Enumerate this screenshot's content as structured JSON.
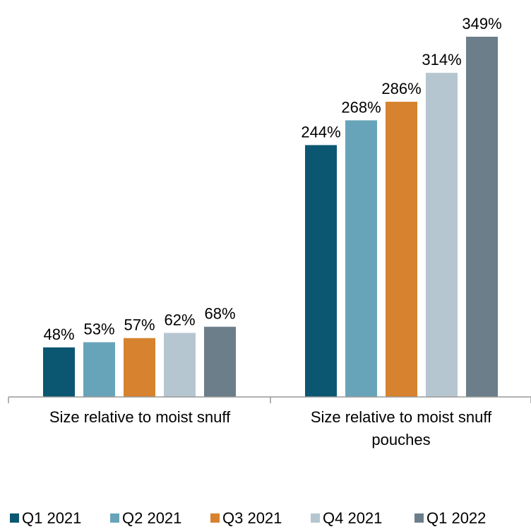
{
  "chart_data": {
    "type": "bar",
    "title": "",
    "xlabel": "",
    "ylabel": "",
    "categories": [
      [
        "Size relative to moist snuff"
      ],
      [
        "Size relative to moist snuff",
        "pouches"
      ]
    ],
    "series": [
      {
        "name": "Q1 2021",
        "color": "#0b5772",
        "values": [
          48,
          244
        ],
        "labels": [
          "48%",
          "244%"
        ]
      },
      {
        "name": "Q2 2021",
        "color": "#68a4b9",
        "values": [
          53,
          268
        ],
        "labels": [
          "53%",
          "268%"
        ]
      },
      {
        "name": "Q3 2021",
        "color": "#d6822e",
        "values": [
          57,
          286
        ],
        "labels": [
          "57%",
          "286%"
        ]
      },
      {
        "name": "Q4 2021",
        "color": "#b6c6d0",
        "values": [
          62,
          314
        ],
        "labels": [
          "62%",
          "314%"
        ]
      },
      {
        "name": "Q1 2022",
        "color": "#6b7e8a",
        "values": [
          68,
          349
        ],
        "labels": [
          "68%",
          "349%"
        ]
      }
    ],
    "ylim": [
      0,
      360
    ],
    "grid": false,
    "legend": "bottom"
  }
}
